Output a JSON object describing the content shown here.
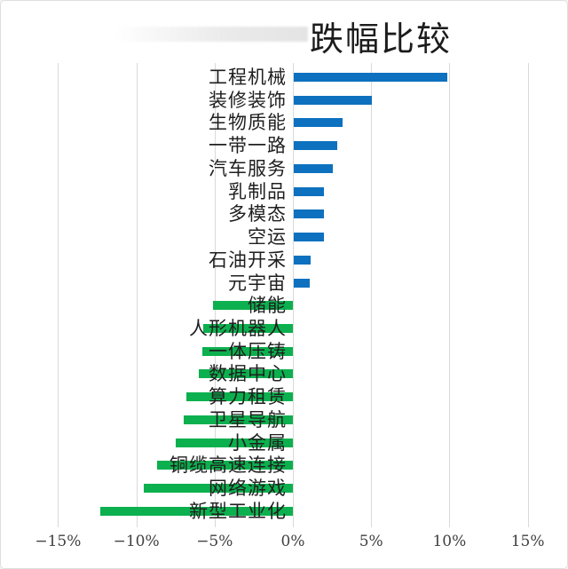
{
  "frame": {
    "background": "#ffffff",
    "border_color": "#dedede"
  },
  "title": "跌幅比较",
  "chart_data": {
    "type": "bar",
    "orientation": "horizontal",
    "title": "跌幅比较",
    "unit": "%",
    "categories": [
      "工程机械",
      "装修装饰",
      "生物质能",
      "一带一路",
      "汽车服务",
      "乳制品",
      "多模态",
      "空运",
      "石油开采",
      "元宇宙",
      "储能",
      "人形机器人",
      "一体压铸",
      "数据中心",
      "算力租赁",
      "卫星导航",
      "小金属",
      "铜缆高速连接",
      "网络游戏",
      "新型工业化"
    ],
    "values": [
      9.8,
      5.0,
      3.1,
      2.8,
      2.5,
      1.9,
      1.9,
      1.9,
      1.1,
      1.0,
      -5.1,
      -5.7,
      -5.8,
      -6.0,
      -6.8,
      -7.0,
      -7.5,
      -8.7,
      -9.5,
      -12.3
    ],
    "xlim": [
      -15,
      15
    ],
    "x_ticks": [
      {
        "value": -15,
        "label": "−15%"
      },
      {
        "value": -10,
        "label": "−10%"
      },
      {
        "value": -5,
        "label": "−5%"
      },
      {
        "value": 0,
        "label": "0%"
      },
      {
        "value": 5,
        "label": "5%"
      },
      {
        "value": 10,
        "label": "10%"
      },
      {
        "value": 15,
        "label": "15%"
      }
    ],
    "grid": "vertical",
    "legend": "none",
    "colors": {
      "positive_bar": "#0d71bf",
      "negative_bar": "#0cb04e",
      "gridline": "#d9d9d9",
      "category_label": "#1f1f1f",
      "axis_tick_label": "#404040",
      "title": "#1c1c1c"
    }
  }
}
